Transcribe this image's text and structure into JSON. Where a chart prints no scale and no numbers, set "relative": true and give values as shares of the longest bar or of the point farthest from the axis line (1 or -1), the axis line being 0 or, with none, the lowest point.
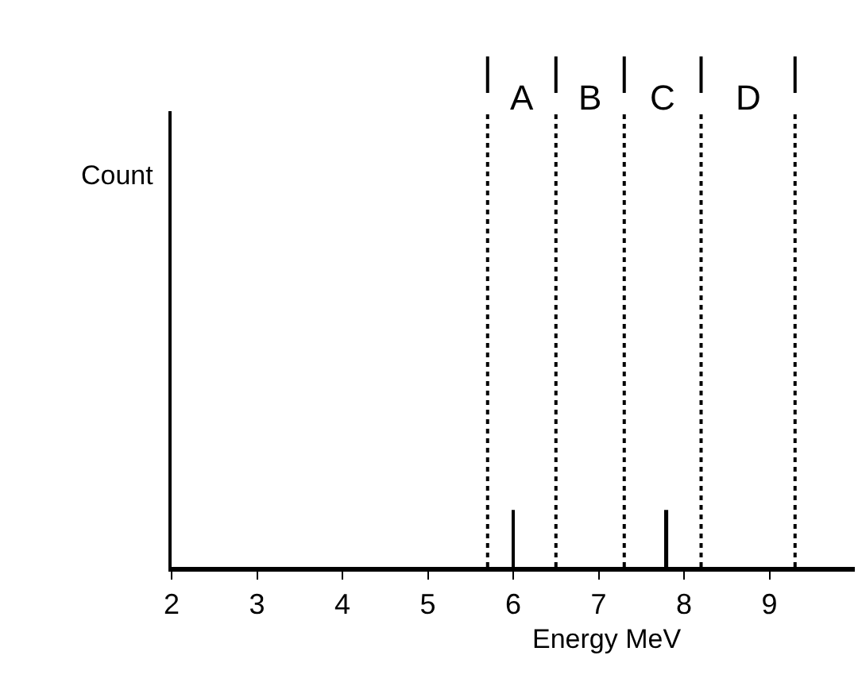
{
  "chart_data": {
    "type": "bar",
    "relative": true,
    "xlabel": "Energy MeV",
    "x": [
      6.0,
      7.8
    ],
    "values": [
      1,
      1
    ],
    "color": "#000000",
    "xlim": [
      2,
      10
    ],
    "xticks": [
      2,
      3,
      4,
      5,
      6,
      7,
      8,
      9
    ],
    "tick_labels": "x",
    "ref_lines": [
      {
        "axis": "x",
        "value": 5.7,
        "line_style": "dotted"
      },
      {
        "axis": "x",
        "value": 6.5,
        "line_style": "dotted"
      },
      {
        "axis": "x",
        "value": 7.3,
        "line_style": "dotted"
      },
      {
        "axis": "x",
        "value": 8.2,
        "line_style": "dotted"
      },
      {
        "axis": "x",
        "value": 9.3,
        "line_style": "dotted"
      }
    ],
    "annotations": [
      "Count",
      "A",
      "B",
      "C",
      "D"
    ]
  }
}
